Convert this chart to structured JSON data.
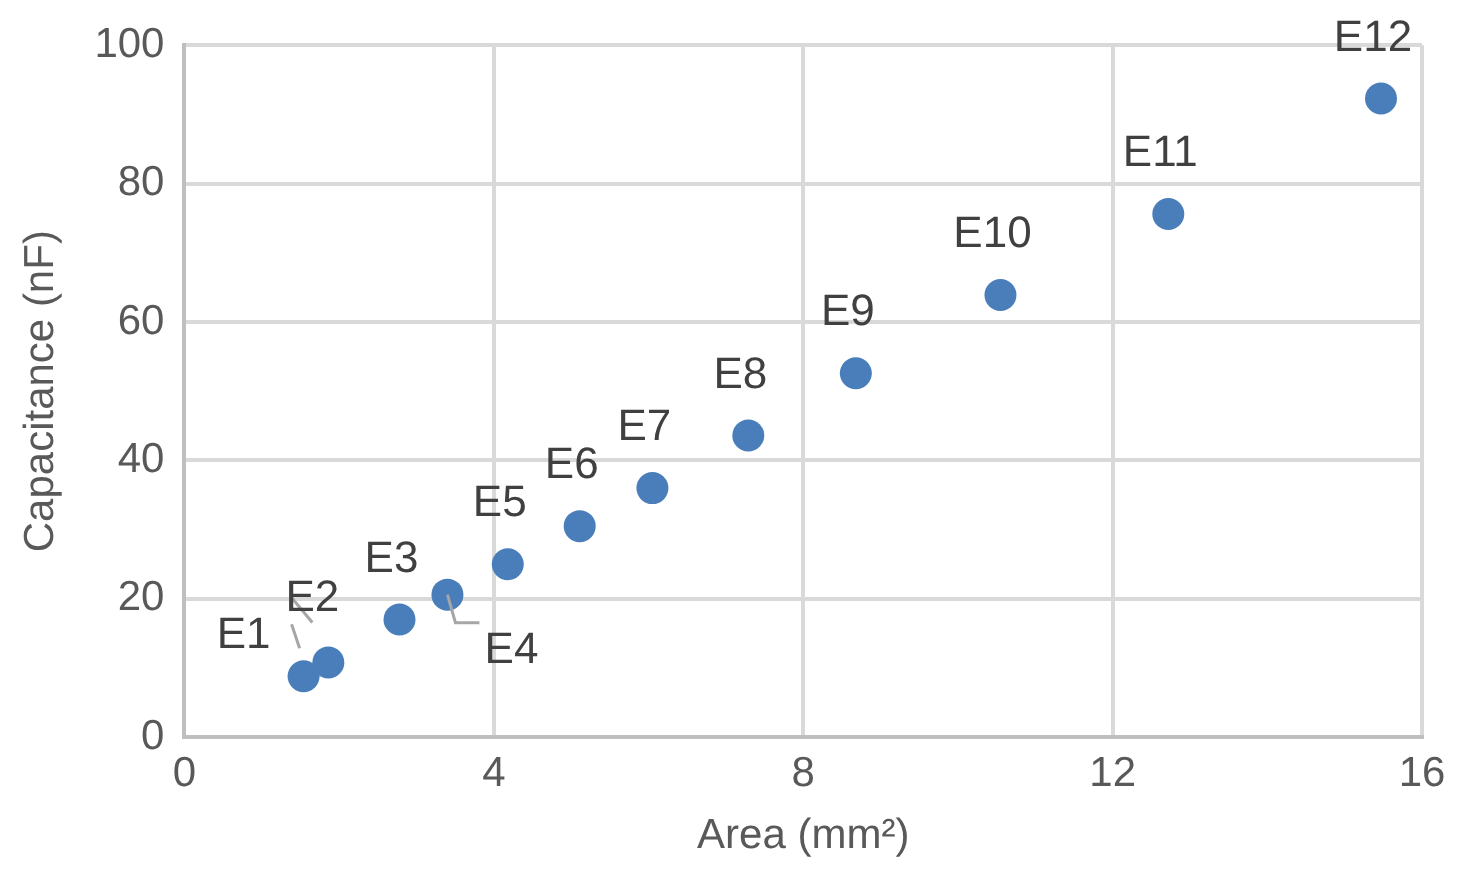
{
  "chart_data": {
    "type": "scatter",
    "xlabel": "Area (mm²)",
    "ylabel": "Capacitance (nF)",
    "x": [
      1.54,
      1.86,
      2.78,
      3.4,
      4.18,
      5.11,
      6.05,
      7.29,
      8.68,
      10.55,
      12.72,
      15.47
    ],
    "series": [
      {
        "color": "#4a7ebb",
        "values": [
          8.8,
          10.8,
          17,
          20.6,
          25,
          30.5,
          36,
          43.6,
          52.6,
          63.9,
          75.6,
          92.3
        ]
      }
    ],
    "annotations": [
      {
        "text": "E1",
        "x": 1.54,
        "y": 8.8
      },
      {
        "text": "E2",
        "x": 1.86,
        "y": 10.8
      },
      {
        "text": "E3",
        "x": 2.78,
        "y": 17
      },
      {
        "text": "E4",
        "x": 3.4,
        "y": 20.6
      },
      {
        "text": "E5",
        "x": 4.18,
        "y": 25
      },
      {
        "text": "E6",
        "x": 5.11,
        "y": 30.5
      },
      {
        "text": "E7",
        "x": 6.05,
        "y": 36
      },
      {
        "text": "E8",
        "x": 7.29,
        "y": 43.6
      },
      {
        "text": "E9",
        "x": 8.68,
        "y": 52.6
      },
      {
        "text": "E10",
        "x": 10.55,
        "y": 63.9
      },
      {
        "text": "E11",
        "x": 12.72,
        "y": 75.6
      },
      {
        "text": "E12",
        "x": 15.47,
        "y": 92.3
      }
    ],
    "xlim": [
      0,
      16
    ],
    "xticks": [
      0,
      4,
      8,
      12,
      16
    ],
    "ylim": [
      0,
      100
    ],
    "yticks": [
      0,
      20,
      40,
      60,
      80,
      100
    ],
    "grid": true,
    "legend": false,
    "marker": "circle"
  }
}
